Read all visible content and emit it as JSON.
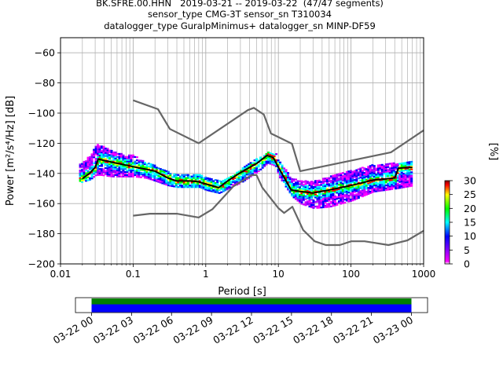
{
  "header": {
    "line1": "BK.SFRE.00.HHN   2019-03-21 -- 2019-03-22  (47/47 segments)",
    "line2": "sensor_type CMG-3T sensor_sn T310034",
    "line3": "datalogger_type GuralpMinimus+ datalogger_sn MINP-DF59"
  },
  "chart_data": [
    {
      "type": "heatmap",
      "title": "BK.SFRE.00.HHN   2019-03-21 -- 2019-03-22  (47/47 segments)",
      "xlabel": "Period [s]",
      "ylabel": "Power [m²/s⁴/Hz] [dB]",
      "x_scale": "log",
      "xlim": [
        0.01,
        1000
      ],
      "ylim": [
        -200,
        -50
      ],
      "x_tick_values": [
        0.01,
        0.1,
        1,
        10,
        100,
        1000
      ],
      "x_tick_labels": [
        "0.01",
        "0.1",
        "1",
        "10",
        "100",
        "1000"
      ],
      "y_tick_values": [
        -60,
        -80,
        -100,
        -120,
        -140,
        -160,
        -180,
        -200
      ],
      "y_tick_labels": [
        "−60",
        "−80",
        "−100",
        "−120",
        "−140",
        "−160",
        "−180",
        "−200"
      ],
      "grid": true,
      "colorbar": {
        "label": "[%]",
        "range": [
          0,
          30
        ],
        "tick_values": [
          0,
          5,
          10,
          15,
          20,
          25,
          30
        ],
        "tick_labels": [
          "0",
          "5",
          "10",
          "15",
          "20",
          "25",
          "30"
        ],
        "colors": [
          "#ffffff",
          "#ff00ff",
          "#0000ff",
          "#00ffff",
          "#00ff00",
          "#ffff00",
          "#ff0000",
          "#800000"
        ]
      },
      "series": [
        {
          "role": "noise-model-high",
          "color": "#666666",
          "points": [
            [
              0.1,
              -91.5
            ],
            [
              0.22,
              -97.4
            ],
            [
              0.32,
              -110.5
            ],
            [
              0.8,
              -120.0
            ],
            [
              3.8,
              -98.0
            ],
            [
              4.6,
              -96.5
            ],
            [
              6.3,
              -101.0
            ],
            [
              7.9,
              -113.5
            ],
            [
              15.4,
              -120.3
            ],
            [
              20,
              -138.5
            ],
            [
              354.8,
              -126.0
            ],
            [
              1000,
              -111.4
            ]
          ]
        },
        {
          "role": "noise-model-low",
          "color": "#666666",
          "points": [
            [
              0.1,
              -168.0
            ],
            [
              0.17,
              -166.7
            ],
            [
              0.4,
              -166.7
            ],
            [
              0.8,
              -169.2
            ],
            [
              1.24,
              -163.7
            ],
            [
              2.4,
              -148.6
            ],
            [
              4.3,
              -141.1
            ],
            [
              5.0,
              -141.1
            ],
            [
              6.0,
              -149.4
            ],
            [
              10,
              -163.0
            ],
            [
              12,
              -166.2
            ],
            [
              15.6,
              -162.1
            ],
            [
              21.9,
              -177.5
            ],
            [
              31.6,
              -185.0
            ],
            [
              45,
              -187.5
            ],
            [
              70,
              -187.5
            ],
            [
              101,
              -185.0
            ],
            [
              154,
              -185.0
            ],
            [
              328,
              -187.5
            ],
            [
              600,
              -184.4
            ],
            [
              1000,
              -178.0
            ]
          ]
        },
        {
          "role": "median",
          "color": "#000000",
          "points": [
            [
              0.02,
              -143.5
            ],
            [
              0.025,
              -140.0
            ],
            [
              0.03,
              -136.0
            ],
            [
              0.033,
              -130.5
            ],
            [
              0.05,
              -132.5
            ],
            [
              0.1,
              -135.5
            ],
            [
              0.2,
              -138.5
            ],
            [
              0.3,
              -143.0
            ],
            [
              0.4,
              -145.0
            ],
            [
              0.6,
              -145.0
            ],
            [
              0.8,
              -145.5
            ],
            [
              1.0,
              -147.0
            ],
            [
              1.5,
              -149.5
            ],
            [
              2.0,
              -145.0
            ],
            [
              3.0,
              -139.5
            ],
            [
              5.0,
              -133.5
            ],
            [
              7.0,
              -128.0
            ],
            [
              8.5,
              -129.5
            ],
            [
              10,
              -136.0
            ],
            [
              15,
              -151.0
            ],
            [
              20,
              -152.0
            ],
            [
              30,
              -153.0
            ],
            [
              50,
              -151.0
            ],
            [
              100,
              -148.0
            ],
            [
              200,
              -144.5
            ],
            [
              400,
              -143.0
            ],
            [
              450,
              -136.5
            ],
            [
              700,
              -136.0
            ]
          ]
        }
      ],
      "band": {
        "periods": [
          0.018,
          0.025,
          0.03,
          0.035,
          0.05,
          0.08,
          0.1,
          0.15,
          0.2,
          0.3,
          0.4,
          0.6,
          0.8,
          1.0,
          1.5,
          2.0,
          3.0,
          5.0,
          7.0,
          9.0,
          10,
          15,
          20,
          30,
          50,
          100,
          200,
          400,
          700
        ],
        "upper": [
          -134,
          -128,
          -121,
          -121,
          -125,
          -128,
          -128,
          -133,
          -135,
          -139,
          -141,
          -141,
          -141,
          -143,
          -145,
          -143,
          -137,
          -130,
          -126,
          -127,
          -132,
          -143,
          -145,
          -145,
          -142,
          -138,
          -134,
          -133,
          -132
        ],
        "lower": [
          -146,
          -144,
          -141,
          -141,
          -142,
          -142,
          -142,
          -143,
          -145,
          -148,
          -149,
          -149,
          -149,
          -151,
          -153,
          -150,
          -146,
          -139,
          -133,
          -135,
          -142,
          -155,
          -160,
          -163,
          -162,
          -158,
          -152,
          -150,
          -148
        ]
      }
    },
    {
      "type": "timeline",
      "tick_labels": [
        "03-22 00",
        "03-22 03",
        "03-22 06",
        "03-22 09",
        "03-22 12",
        "03-22 15",
        "03-22 18",
        "03-22 21",
        "03-23 00"
      ],
      "rows": [
        {
          "role": "data-availability",
          "color": "#008000",
          "start": "03-22 00",
          "end": "03-23 00"
        },
        {
          "role": "psd-coverage",
          "color": "#0000ff",
          "start": "03-22 00",
          "end": "03-23 00"
        }
      ],
      "axis_start": "03-21 23:00",
      "axis_end": "03-23 01:00"
    }
  ]
}
